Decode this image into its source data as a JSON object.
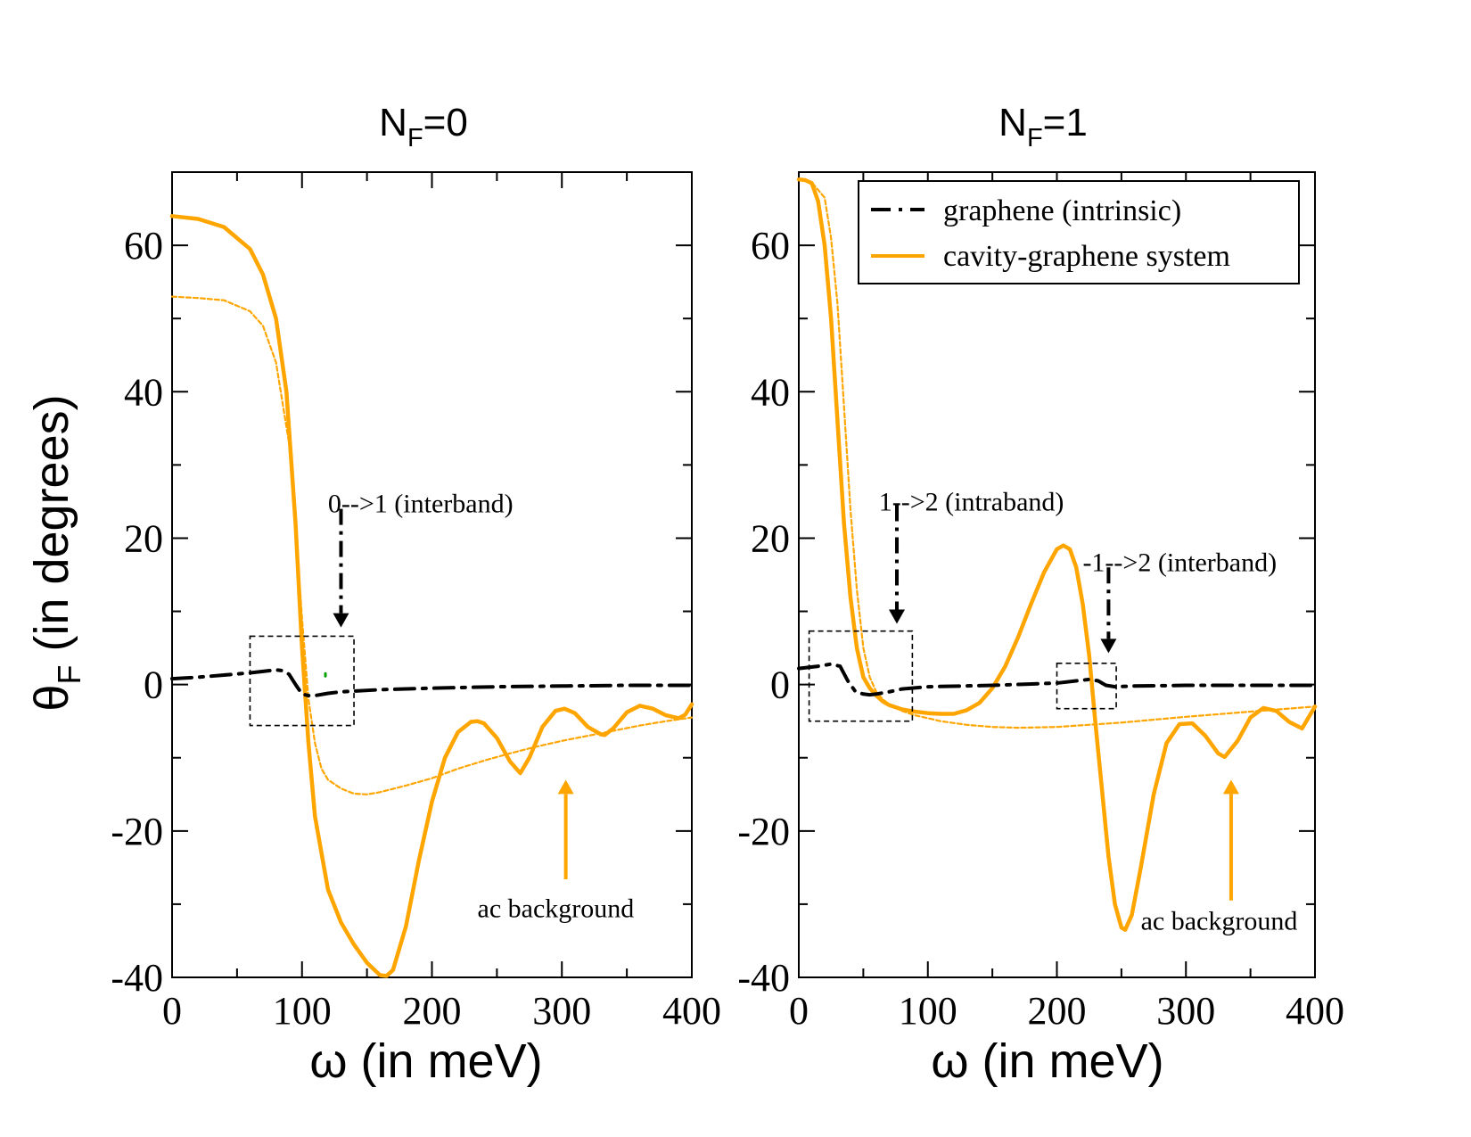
{
  "colors": {
    "orange": "#FFA500",
    "black": "#000000",
    "green": "#00A000"
  },
  "ylabel": {
    "theta": "θ",
    "sub": "F",
    "rest": " (in degrees)"
  },
  "legend": {
    "entries": [
      {
        "label": "graphene (intrinsic)",
        "style": "dash-dot",
        "color": "#000000"
      },
      {
        "label": "cavity-graphene system",
        "style": "solid",
        "color": "#FFA500"
      }
    ]
  },
  "chart_data": [
    {
      "type": "line",
      "title": {
        "main": "N",
        "sub": "F",
        "suffix": "=0"
      },
      "xlabel": "ω (in meV)",
      "ylabel": "θF (in degrees)",
      "xlim": [
        0,
        400
      ],
      "ylim": [
        -40,
        70
      ],
      "xticks": [
        "0",
        "100",
        "200",
        "300",
        "400"
      ],
      "yticks": [
        "-40",
        "-20",
        "0",
        "20",
        "40",
        "60"
      ],
      "series": [
        {
          "name": "cavity-graphene system",
          "style": "solid",
          "x": [
            0,
            20,
            40,
            60,
            70,
            80,
            88,
            95,
            100,
            105,
            110,
            120,
            130,
            140,
            150,
            160,
            165,
            170,
            180,
            190,
            200,
            210,
            220,
            230,
            235,
            240,
            250,
            260,
            268,
            275,
            285,
            295,
            302,
            310,
            320,
            330,
            333,
            340,
            350,
            360,
            370,
            380,
            390,
            395,
            400
          ],
          "y": [
            64,
            63.6,
            62.5,
            59.5,
            56,
            50,
            40,
            22,
            5,
            -8,
            -18,
            -28,
            -32.5,
            -35.5,
            -38,
            -39.7,
            -39.8,
            -39,
            -33,
            -24,
            -16,
            -10,
            -6.5,
            -5.1,
            -5,
            -5.3,
            -7.3,
            -10.5,
            -12.1,
            -10,
            -5.8,
            -3.6,
            -3.3,
            -3.9,
            -5.8,
            -6.8,
            -6.9,
            -5.9,
            -3.8,
            -2.9,
            -3.3,
            -4.2,
            -4.6,
            -4.1,
            -2.7
          ]
        },
        {
          "name": "thin orange",
          "style": "dashed",
          "x": [
            0,
            20,
            40,
            60,
            70,
            80,
            90,
            95,
            100,
            105,
            110,
            115,
            120,
            130,
            140,
            150,
            160,
            180,
            200,
            220,
            240,
            260,
            280,
            300,
            320,
            340,
            360,
            380,
            400
          ],
          "y": [
            53,
            52.8,
            52.5,
            51,
            49,
            44,
            33,
            22,
            9,
            -2,
            -8,
            -11.5,
            -13,
            -14.2,
            -14.9,
            -15,
            -14.7,
            -13.8,
            -12.8,
            -11.5,
            -10.4,
            -9.4,
            -8.5,
            -7.7,
            -7,
            -6.3,
            -5.6,
            -5,
            -4.5
          ]
        },
        {
          "name": "graphene (intrinsic)",
          "style": "dash-dot",
          "x": [
            0,
            20,
            40,
            60,
            70,
            80,
            85,
            90,
            95,
            100,
            105,
            110,
            120,
            130,
            140,
            160,
            200,
            250,
            300,
            350,
            400
          ],
          "y": [
            0.8,
            1,
            1.3,
            1.6,
            1.8,
            2,
            1.9,
            1.4,
            0,
            -1.3,
            -1.5,
            -1.5,
            -1.2,
            -1,
            -0.9,
            -0.7,
            -0.5,
            -0.3,
            -0.2,
            -0.1,
            -0.1
          ]
        },
        {
          "name": "green marker",
          "style": "dashed",
          "color": "#00A000",
          "x": [
            118,
            118
          ],
          "y": [
            1.5,
            0.9
          ]
        }
      ],
      "boxes": [
        {
          "x": [
            60,
            140
          ],
          "y": [
            -5.6,
            6.6
          ]
        }
      ],
      "annotations": [
        {
          "text": "0-->1 (interband)",
          "x": 120,
          "y": 23.5,
          "arrow_x": 130,
          "arrow_from": 24,
          "arrow_to": 7.8,
          "color": "#000000",
          "style": "dash-dot"
        },
        {
          "text": "ac background",
          "x": 235,
          "y": -31.8,
          "arrow_x": 303,
          "arrow_from": -26.6,
          "arrow_to": -13,
          "color": "#FFA500",
          "style": "solid"
        }
      ]
    },
    {
      "type": "line",
      "title": {
        "main": "N",
        "sub": "F",
        "suffix": "=1"
      },
      "xlabel": "ω (in meV)",
      "ylabel": "θF (in degrees)",
      "xlim": [
        0,
        400
      ],
      "ylim": [
        -40,
        70
      ],
      "xticks": [
        "0",
        "100",
        "200",
        "300",
        "400"
      ],
      "yticks": [
        "-40",
        "-20",
        "0",
        "20",
        "40",
        "60"
      ],
      "series": [
        {
          "name": "cavity-graphene system",
          "style": "solid",
          "x": [
            0,
            5,
            10,
            15,
            20,
            25,
            30,
            35,
            40,
            45,
            50,
            55,
            60,
            65,
            70,
            80,
            90,
            100,
            110,
            120,
            130,
            140,
            150,
            160,
            170,
            180,
            190,
            200,
            205,
            210,
            215,
            220,
            225,
            230,
            235,
            240,
            245,
            250,
            253,
            258,
            265,
            275,
            285,
            295,
            305,
            315,
            325,
            330,
            340,
            350,
            360,
            370,
            380,
            390,
            400
          ],
          "y": [
            69,
            68.9,
            68.5,
            66,
            60,
            50,
            36,
            22,
            12,
            5,
            1,
            -0.5,
            -1.5,
            -2.3,
            -2.8,
            -3.4,
            -3.7,
            -3.9,
            -4,
            -4,
            -3.5,
            -2.5,
            -0.5,
            2.5,
            6.5,
            11,
            15.3,
            18.5,
            19,
            18.5,
            16,
            11,
            4,
            -5.5,
            -14.5,
            -23.5,
            -30,
            -33.2,
            -33.5,
            -31.5,
            -25,
            -15,
            -8,
            -5.4,
            -5.3,
            -7,
            -9.4,
            -9.9,
            -7.7,
            -4.5,
            -3.2,
            -3.6,
            -5.1,
            -6,
            -3
          ]
        },
        {
          "name": "thin orange",
          "style": "dashed",
          "x": [
            0,
            10,
            20,
            25,
            30,
            35,
            40,
            45,
            50,
            55,
            60,
            65,
            70,
            80,
            90,
            100,
            110,
            130,
            150,
            170,
            200,
            250,
            300,
            350,
            400
          ],
          "y": [
            69,
            68.6,
            66.5,
            61,
            52,
            38,
            24,
            13,
            5,
            1,
            -1,
            -2,
            -2.7,
            -3.6,
            -4.2,
            -4.6,
            -5,
            -5.5,
            -5.8,
            -5.9,
            -5.8,
            -5.2,
            -4.4,
            -3.7,
            -3
          ]
        },
        {
          "name": "graphene (intrinsic)",
          "style": "dash-dot",
          "x": [
            0,
            15,
            25,
            32,
            38,
            44,
            50,
            55,
            60,
            70,
            80,
            100,
            150,
            200,
            215,
            225,
            232,
            238,
            245,
            260,
            300,
            350,
            400
          ],
          "y": [
            2.2,
            2.5,
            2.8,
            2.5,
            0.5,
            -1,
            -1.3,
            -1.4,
            -1.3,
            -1,
            -0.6,
            -0.3,
            -0.1,
            0.2,
            0.5,
            0.7,
            0.5,
            -0.1,
            -0.3,
            -0.2,
            -0.1,
            -0.1,
            -0.1
          ]
        }
      ],
      "boxes": [
        {
          "x": [
            8,
            88
          ],
          "y": [
            -5,
            7.3
          ]
        },
        {
          "x": [
            200,
            246
          ],
          "y": [
            -3.3,
            2.9
          ]
        }
      ],
      "annotations": [
        {
          "text": "1-->2 (intraband)",
          "x": 62,
          "y": 23.8,
          "arrow_x": 76,
          "arrow_from": 24.5,
          "arrow_to": 8.3,
          "color": "#000000",
          "style": "dash-dot"
        },
        {
          "text": "-1-->2 (interband)",
          "x": 220,
          "y": 15.5,
          "arrow_x": 240,
          "arrow_from": 16,
          "arrow_to": 4.3,
          "color": "#000000",
          "style": "dash-dot"
        },
        {
          "text": "ac background",
          "x": 265,
          "y": -33.5,
          "arrow_x": 335,
          "arrow_from": -29.5,
          "arrow_to": -13,
          "color": "#FFA500",
          "style": "solid"
        }
      ]
    }
  ]
}
